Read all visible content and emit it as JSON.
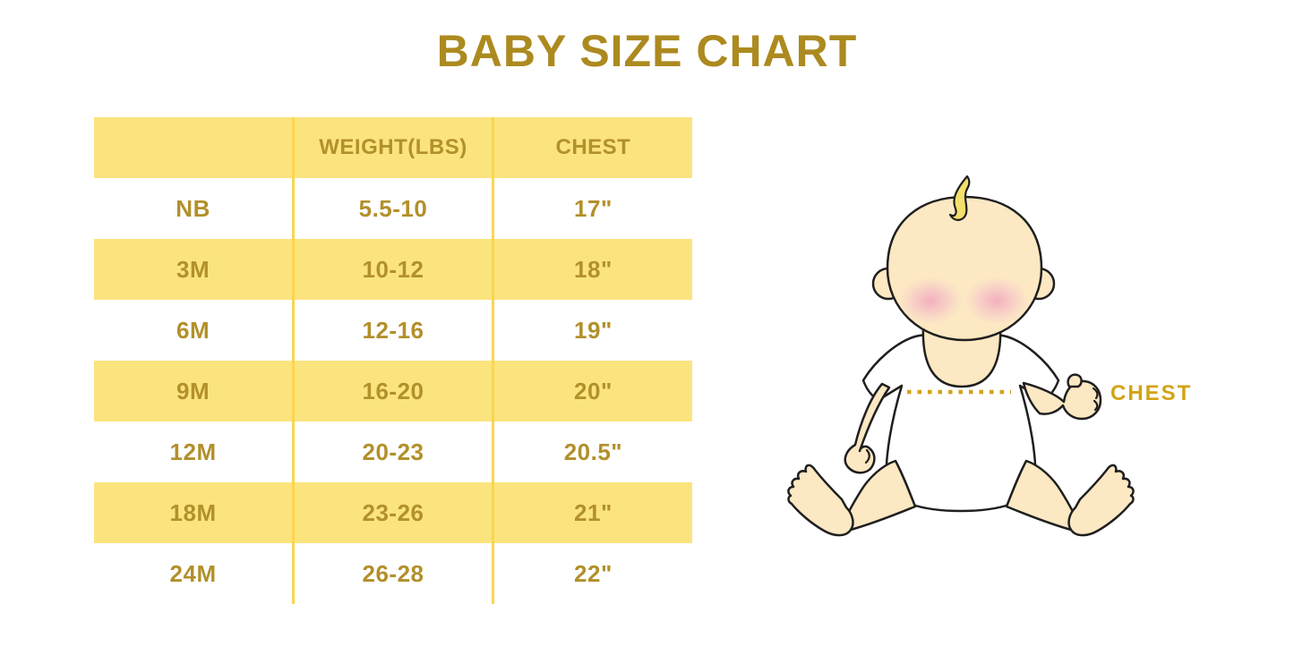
{
  "title": "BABY SIZE CHART",
  "chart_data": {
    "type": "table",
    "title": "BABY SIZE CHART",
    "columns": [
      "",
      "WEIGHT(LBS)",
      "CHEST"
    ],
    "rows": [
      [
        "NB",
        "5.5-10",
        "17\""
      ],
      [
        "3M",
        "10-12",
        "18\""
      ],
      [
        "6M",
        "12-16",
        "19\""
      ],
      [
        "9M",
        "16-20",
        "20\""
      ],
      [
        "12M",
        "20-23",
        "20.5\""
      ],
      [
        "18M",
        "23-26",
        "21\""
      ],
      [
        "24M",
        "26-28",
        "22\""
      ]
    ],
    "layout_hints": {
      "header_fill": "#FBE47E",
      "alternate_row_fill": "#FBE47E",
      "divider_color": "#F9D64F",
      "text_color": "#B2902A",
      "grid": "vertical-dividers-only"
    }
  },
  "diagram": {
    "measure_label": "CHEST",
    "subject": "sitting-baby-illustration",
    "colors": {
      "skin": "#FCE8C2",
      "hair": "#F3DF6B",
      "blush": "#F1A8BC",
      "outline": "#1F1F1F",
      "onesie": "#FFFFFF",
      "measure_gold": "#D2A315"
    }
  },
  "colors": {
    "title_gold": "#AC8A1F",
    "table_gold": "#B2902A",
    "band_yellow": "#FBE47E",
    "divider_yellow": "#F9D64F"
  }
}
